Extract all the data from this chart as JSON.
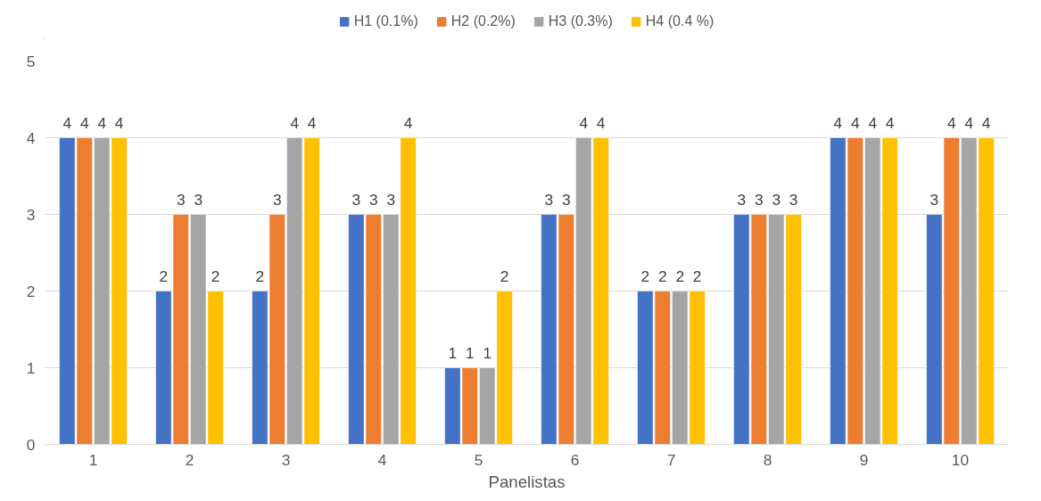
{
  "chart_data": {
    "type": "bar",
    "xlabel": "Panelistas",
    "categories": [
      "1",
      "2",
      "3",
      "4",
      "5",
      "6",
      "7",
      "8",
      "9",
      "10"
    ],
    "series": [
      {
        "name": "H1 (0.1%)",
        "color": "#4472c4",
        "values": [
          4,
          2,
          2,
          3,
          1,
          3,
          2,
          3,
          4,
          3
        ]
      },
      {
        "name": "H2 (0.2%)",
        "color": "#ed7d31",
        "values": [
          4,
          3,
          3,
          3,
          1,
          3,
          2,
          3,
          4,
          4
        ]
      },
      {
        "name": "H3 (0.3%)",
        "color": "#a5a5a5",
        "values": [
          4,
          3,
          4,
          3,
          1,
          4,
          2,
          3,
          4,
          4
        ]
      },
      {
        "name": "H4 (0.4 %)",
        "color": "#ffc000",
        "values": [
          4,
          2,
          4,
          4,
          2,
          4,
          2,
          3,
          4,
          4
        ]
      }
    ],
    "ylim": [
      0,
      5
    ],
    "yticks": [
      0,
      1,
      2,
      3,
      4,
      5
    ],
    "grid": "y",
    "legend": "top",
    "data_labels": true
  }
}
